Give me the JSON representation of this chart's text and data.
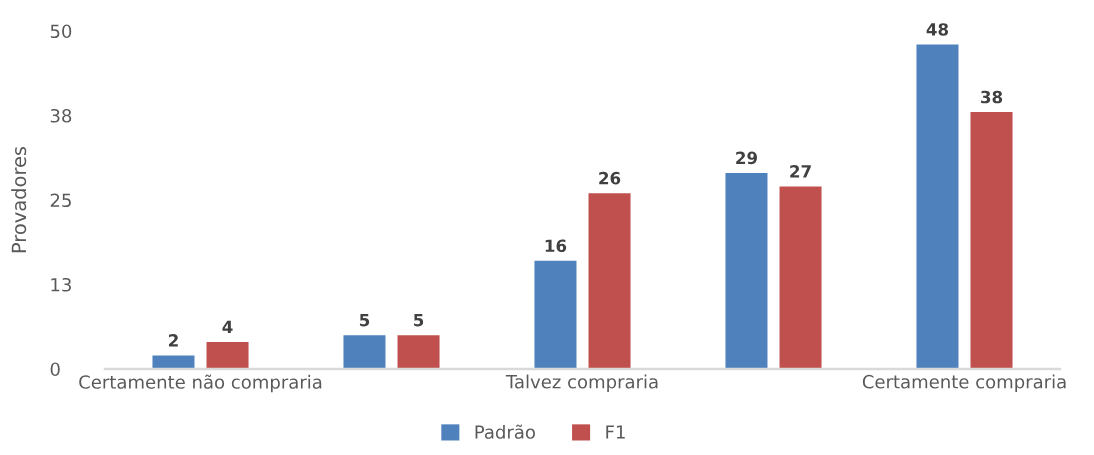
{
  "chart_data": {
    "type": "bar",
    "ylabel": "Provadores",
    "categories": [
      "Certamente não compraria",
      null,
      "Talvez compraria",
      null,
      "Certamente compraria"
    ],
    "series": [
      {
        "name": "Padrão",
        "color": "#4f81bd",
        "values": [
          2,
          5,
          16,
          29,
          48
        ]
      },
      {
        "name": "F1",
        "color": "#c0504d",
        "values": [
          4,
          5,
          26,
          27,
          38
        ]
      }
    ],
    "ylim": [
      0,
      50
    ],
    "yticks": [
      0,
      {
        "value": 12.5,
        "label": "13"
      },
      25,
      {
        "value": 37.5,
        "label": "38"
      },
      50
    ],
    "data_labels": true,
    "grid": false,
    "legend": "bottom"
  }
}
